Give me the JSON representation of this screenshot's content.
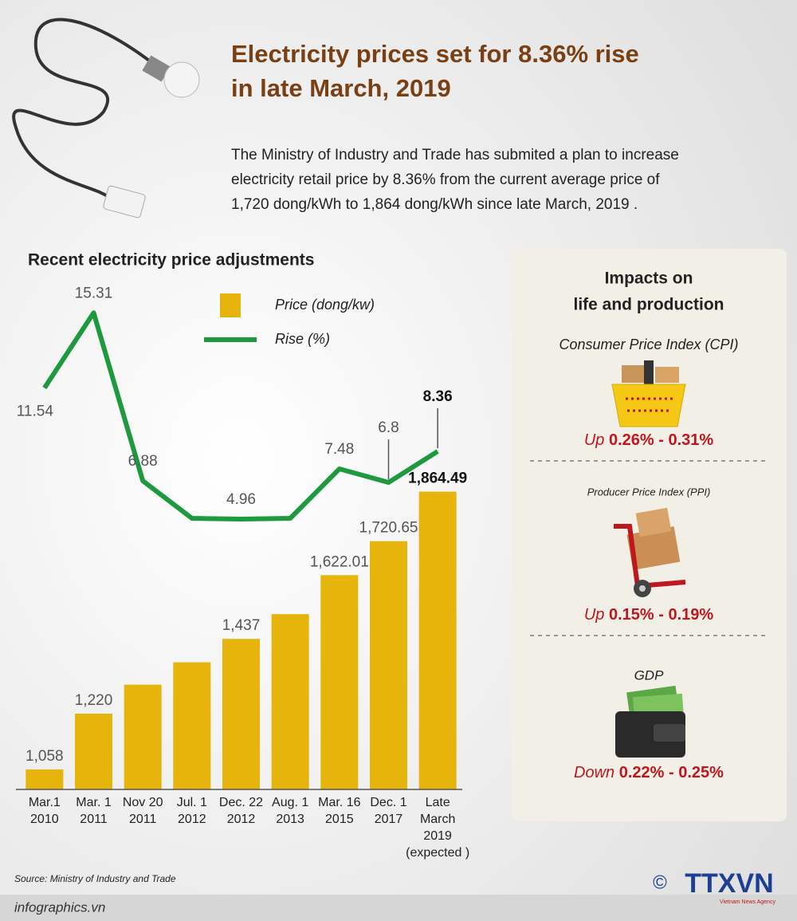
{
  "header": {
    "title": [
      "Electricity prices set for 8.36% rise",
      "in late March, 2019"
    ],
    "description": [
      "The Ministry of Industry and Trade has submited a plan to increase",
      "electricity retail price by 8.36% from the current average price of",
      "1,720 dong/kWh to 1,864 dong/kWh since late March, 2019 ."
    ]
  },
  "chart_data": {
    "type": "combo",
    "title": "Recent electricity price adjustments",
    "categories": [
      "Mar.1\n2010",
      "Mar. 1\n2011",
      "Nov 20\n2011",
      "Jul. 1\n2012",
      "Dec. 22\n2012",
      "Aug. 1\n2013",
      "Mar. 16\n2015",
      "Dec. 1\n2017",
      "Late\nMarch\n2019\n(expected )"
    ],
    "series": [
      {
        "name": "Price (dong/kw)",
        "type": "bar",
        "color": "#e6b40a",
        "values": [
          1058,
          1220,
          1304,
          1369,
          1437,
          1508.85,
          1622.01,
          1720.65,
          1864.49
        ],
        "value_labels": [
          "1,058",
          "1,220",
          null,
          null,
          "1,437",
          null,
          "1,622.01",
          "1,720.65",
          "1,864.49"
        ]
      },
      {
        "name": "Rise (%)",
        "type": "line",
        "axis": "y2",
        "color": "#1e9a3e",
        "values": [
          11.54,
          15.31,
          6.88,
          5,
          4.96,
          5,
          7.48,
          6.8,
          8.36
        ],
        "value_labels": [
          "11.54",
          "15.31",
          "6.88",
          null,
          "4.96",
          null,
          "7.48",
          "6.8",
          "8.36"
        ]
      }
    ],
    "ylim": [
      1000,
      2000
    ],
    "y2lim": [
      0,
      20
    ],
    "grid": false
  },
  "impacts": {
    "title": [
      "Impacts on",
      "life and production"
    ],
    "items": [
      {
        "label": "Consumer Price Index  (CPI)",
        "direction": "Up",
        "range": "0.26% - 0.31%"
      },
      {
        "label": "Producer Price Index (PPI)",
        "direction": "Up",
        "range": "0.15% - 0.19%"
      },
      {
        "label": "GDP",
        "direction": "Down",
        "range": "0.22% - 0.25%"
      }
    ]
  },
  "footer": {
    "source": "Source: Ministry of Industry and Trade",
    "site": "infographics.vn",
    "copyright": "©",
    "logo": "TTXVN",
    "agency": "Vietnam News Agency"
  }
}
